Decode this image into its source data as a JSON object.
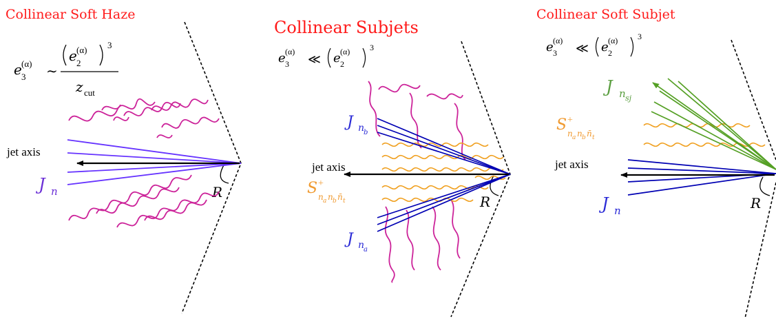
{
  "colors": {
    "title": "#ff1a1a",
    "blue_line": "#0000b3",
    "violet_line": "#6633ff",
    "magenta_wave": "#cc2299",
    "orange_wave": "#f0a020",
    "green_line": "#55a025",
    "jet_label_violet": "#6b2fd6",
    "jet_label_blue": "#2a2ad6",
    "soft_label_orange": "#f09a30",
    "subjet_label_green": "#5a9e40"
  },
  "panels": [
    {
      "title": "Collinear Soft Haze",
      "formula": {
        "lhs": "e",
        "lhs_sub": "3",
        "lhs_sup": "(α)",
        "relation": "∼",
        "num_base": "e",
        "num_sub": "2",
        "num_sup": "(α)",
        "num_power": "3",
        "den": "z",
        "den_sub": "cut"
      },
      "axis_label": "jet axis",
      "jet_label": "J",
      "jet_label_sub": "n",
      "radius_label": "R"
    },
    {
      "title": "Collinear Subjets",
      "formula": {
        "lhs": "e",
        "lhs_sub": "3",
        "lhs_sup": "(α)",
        "relation": "≪",
        "rhs_base": "e",
        "rhs_sub": "2",
        "rhs_sup": "(α)",
        "rhs_power": "3"
      },
      "axis_label": "jet axis",
      "jet_label_top": "J",
      "jet_label_top_sub": "n",
      "jet_label_top_subsub": "b",
      "jet_label_bottom": "J",
      "jet_label_bottom_sub": "n",
      "jet_label_bottom_subsub": "a",
      "soft_label": "S",
      "soft_label_sup": "+",
      "soft_label_sub": "n",
      "soft_label_sub2": "a",
      "soft_label_sub3": "n",
      "soft_label_sub4": "b",
      "soft_label_sub5": "n̄",
      "soft_label_sub6": "t",
      "radius_label": "R"
    },
    {
      "title": "Collinear Soft Subjet",
      "formula": {
        "lhs": "e",
        "lhs_sub": "3",
        "lhs_sup": "(α)",
        "relation": "≪",
        "rhs_base": "e",
        "rhs_sub": "2",
        "rhs_sup": "(α)",
        "rhs_power": "3"
      },
      "axis_label": "jet axis",
      "subjet_label": "J",
      "subjet_label_sub": "n",
      "subjet_label_subsub": "sj",
      "soft_label": "S",
      "soft_label_sup": "+",
      "soft_label_sub": "n",
      "soft_label_sub2": "a",
      "soft_label_sub3": "n",
      "soft_label_sub4": "b",
      "soft_label_sub5": "n̄",
      "soft_label_sub6": "t",
      "jet_label": "J",
      "jet_label_sub": "n",
      "radius_label": "R"
    }
  ]
}
